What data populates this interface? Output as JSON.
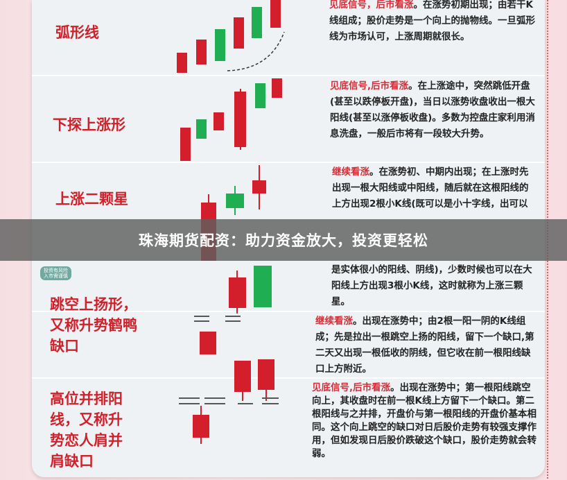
{
  "banner": "珠海期货配资：助力资金放大，投资更轻松",
  "badge": [
    "投资有风险",
    "入市需谨慎"
  ],
  "patterns": [
    {
      "name": "弧形线",
      "signal": "见底信号，后市看涨",
      "text": "。在涨势初期出现；由若干K线组成；股价走势是一个向上的抛物线。一旦弧形线为市场认可，上涨周期就很长。"
    },
    {
      "name": "下探上涨形",
      "signal": "见底信号,后市看涨",
      "text": "。在上涨途中，突然跳低开盘(甚至以跌停板开盘)，当日以涨势收盘收出一根大阳线(甚至以涨停板收盘)。多数为控盘庄家利用消息洗盘，一般后市将有一段较大升势。"
    },
    {
      "name": "上涨二颗星",
      "signal": "继续看涨",
      "text": "。在涨势初、中期内出现；在上涨时先出现一根大阳线或中阳线，随后就在这根阳线的上方出现2根小K线(既可以是小十字线，出可以是实体很小的阳线、阴线)，少数时候也可以在大阳线上方出现3根小K线，这时就称为上涨三颗星。"
    },
    {
      "name": "跳空上扬形，又称升势鹤鸭缺口",
      "signal": "继续看涨",
      "text": "。出现在涨势中；由2根一阳一阴的K线组成；先是拉出一根跳空上扬的阳线，留下一个缺口,第二天又出现一根低收的阴线，但它收在前一根阳线缺口上方附近。"
    },
    {
      "name": "高位并排阳线，又称升势恋人肩并肩缺口",
      "signal": "见底信号,后市看涨",
      "text": "。出现在涨势中；第一根阳线跳空向上，其收盘时在前一根K线上方留下一个缺口。第二根阳线与之并排，开盘价与第一根阳线的开盘价基本相同。这个向上跳空的缺口对日后股价走势有较强支撑作用，但如发现日后股价跌破这个缺口，股价走势就会转弱。"
    }
  ],
  "colors": {
    "up": "#d21f2b",
    "down": "#1fae52",
    "accent": "#d0202a"
  }
}
